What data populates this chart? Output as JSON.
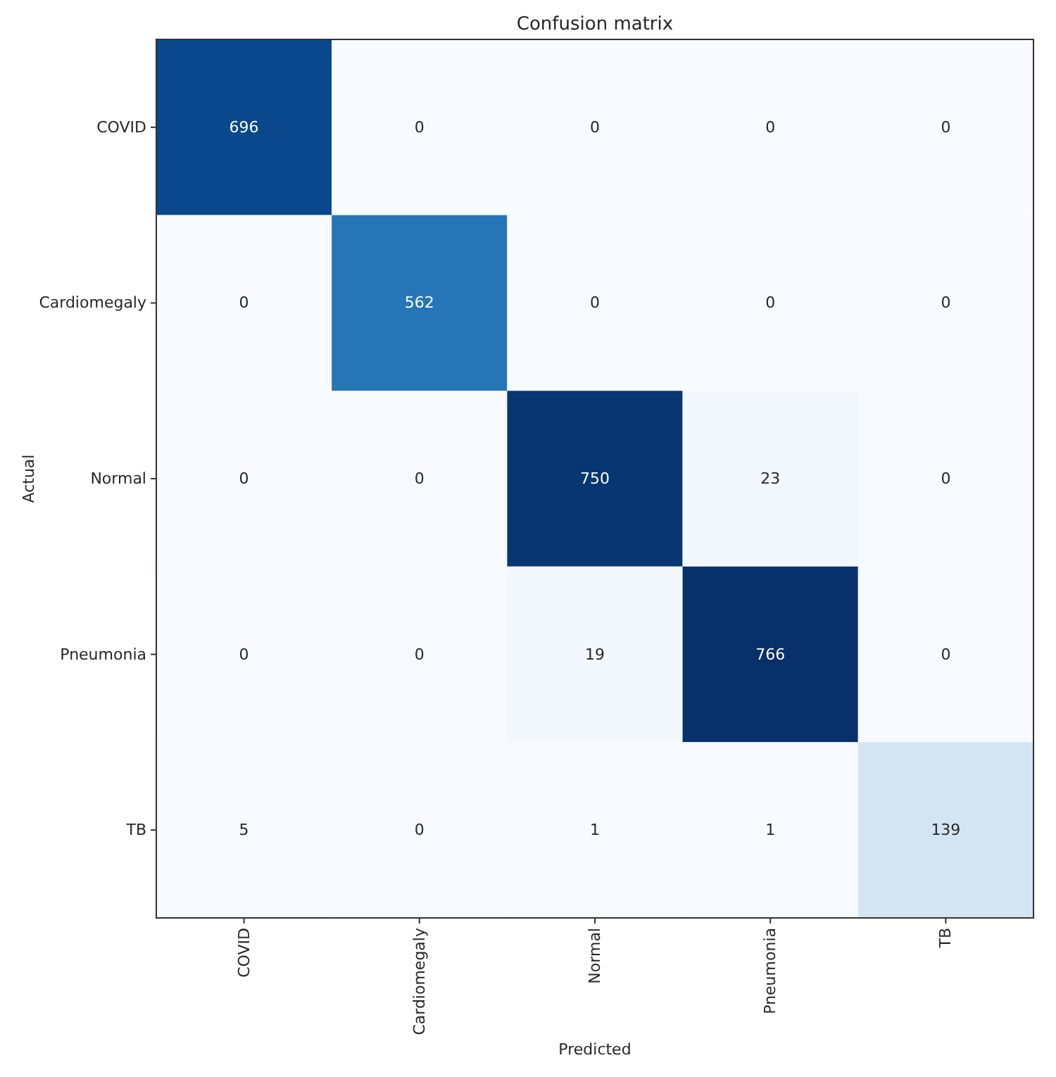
{
  "chart_data": {
    "type": "heatmap",
    "title": "Confusion matrix",
    "xlabel": "Predicted",
    "data_labels": true,
    "ylabel": "Actual",
    "categories": [
      "COVID",
      "Cardiomegaly",
      "Normal",
      "Pneumonia",
      "TB"
    ],
    "y_categories": [
      "COVID",
      "Cardiomegaly",
      "Normal",
      "Pneumonia",
      "TB"
    ],
    "cells": [
      [
        696,
        0,
        0,
        0,
        0
      ],
      [
        0,
        562,
        0,
        0,
        0
      ],
      [
        0,
        0,
        750,
        23,
        0
      ],
      [
        0,
        0,
        19,
        766,
        0
      ],
      [
        5,
        0,
        1,
        1,
        139
      ]
    ]
  }
}
